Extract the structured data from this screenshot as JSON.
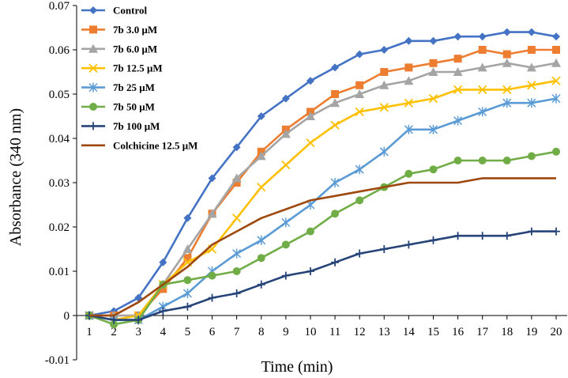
{
  "chart_data": {
    "type": "line",
    "title": "",
    "xlabel": "Time (min)",
    "ylabel": "Absorbance (340 nm)",
    "x": [
      1,
      2,
      3,
      4,
      5,
      6,
      7,
      8,
      9,
      10,
      11,
      12,
      13,
      14,
      15,
      16,
      17,
      18,
      19,
      20
    ],
    "xlim": [
      1,
      20
    ],
    "ylim": [
      -0.01,
      0.07
    ],
    "yticks": [
      "-0.01",
      "0",
      "0.01",
      "0.02",
      "0.03",
      "0.04",
      "0.05",
      "0.06",
      "0.07"
    ],
    "xticks": [
      "1",
      "2",
      "3",
      "4",
      "5",
      "6",
      "7",
      "8",
      "9",
      "10",
      "11",
      "12",
      "13",
      "14",
      "15",
      "16",
      "17",
      "18",
      "19",
      "20"
    ],
    "grid": false,
    "legend_position": "top-left",
    "series": [
      {
        "name": "Control",
        "color": "#4472C4",
        "marker": "diamond",
        "values": [
          0,
          0.001,
          0.004,
          0.012,
          0.022,
          0.031,
          0.038,
          0.045,
          0.049,
          0.053,
          0.056,
          0.059,
          0.06,
          0.062,
          0.062,
          0.063,
          0.063,
          0.064,
          0.064,
          0.063
        ]
      },
      {
        "name": "7b 3.0 μM",
        "color": "#ED7D31",
        "marker": "square",
        "values": [
          0,
          0,
          0,
          0.006,
          0.013,
          0.023,
          0.03,
          0.037,
          0.042,
          0.046,
          0.05,
          0.052,
          0.055,
          0.056,
          0.057,
          0.058,
          0.06,
          0.059,
          0.06,
          0.06
        ]
      },
      {
        "name": "7b 6.0 μM",
        "color": "#A5A5A5",
        "marker": "triangle",
        "values": [
          0,
          0,
          0,
          0.007,
          0.015,
          0.023,
          0.031,
          0.036,
          0.041,
          0.045,
          0.048,
          0.05,
          0.052,
          0.053,
          0.055,
          0.055,
          0.056,
          0.057,
          0.056,
          0.057
        ]
      },
      {
        "name": "7b 12.5 μM",
        "color": "#FFC000",
        "marker": "x",
        "values": [
          0,
          -0.001,
          0,
          0.007,
          0.012,
          0.015,
          0.022,
          0.029,
          0.034,
          0.039,
          0.043,
          0.046,
          0.047,
          0.048,
          0.049,
          0.051,
          0.051,
          0.051,
          0.052,
          0.053
        ]
      },
      {
        "name": "7b 25 μM",
        "color": "#5B9BD5",
        "marker": "star",
        "values": [
          0,
          -0.001,
          -0.001,
          0.002,
          0.005,
          0.01,
          0.014,
          0.017,
          0.021,
          0.025,
          0.03,
          0.033,
          0.037,
          0.042,
          0.042,
          0.044,
          0.046,
          0.048,
          0.048,
          0.049
        ]
      },
      {
        "name": "7b 50 μM",
        "color": "#70AD47",
        "marker": "circle",
        "values": [
          0,
          -0.002,
          -0.001,
          0.007,
          0.008,
          0.009,
          0.01,
          0.013,
          0.016,
          0.019,
          0.023,
          0.026,
          0.029,
          0.032,
          0.033,
          0.035,
          0.035,
          0.035,
          0.036,
          0.037
        ]
      },
      {
        "name": "7b 100 μM",
        "color": "#264478",
        "marker": "plus",
        "values": [
          0,
          -0.001,
          -0.001,
          0.001,
          0.002,
          0.004,
          0.005,
          0.007,
          0.009,
          0.01,
          0.012,
          0.014,
          0.015,
          0.016,
          0.017,
          0.018,
          0.018,
          0.018,
          0.019,
          0.019
        ]
      },
      {
        "name": "Colchicine 12.5 μM",
        "color": "#9E480E",
        "marker": "none",
        "values": [
          0,
          0,
          0.003,
          0.007,
          0.011,
          0.016,
          0.019,
          0.022,
          0.024,
          0.026,
          0.027,
          0.028,
          0.029,
          0.03,
          0.03,
          0.03,
          0.031,
          0.031,
          0.031,
          0.031
        ]
      }
    ]
  }
}
